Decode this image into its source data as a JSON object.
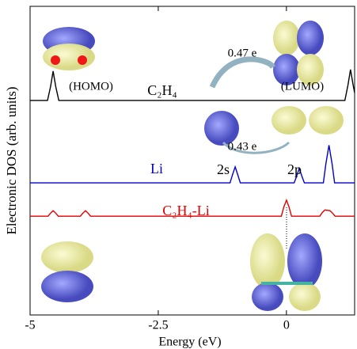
{
  "chart_data": {
    "type": "line",
    "xlabel": "Energy (eV)",
    "ylabel": "Electronic DOS (arb. units)",
    "xlim": [
      -5,
      1.33
    ],
    "xticks": [
      -5,
      -2.5,
      0
    ],
    "ylim": [
      0,
      10
    ],
    "series": [
      {
        "name": "C₂H₄",
        "color": "#000000",
        "x": [
          -5,
          -4.66,
          -4.6,
          -4.55,
          -4.5,
          -4.44,
          1.14,
          1.2,
          1.25,
          1.3,
          1.33
        ],
        "values": [
          6.95,
          6.95,
          7.4,
          7.9,
          7.4,
          6.95,
          6.95,
          7.45,
          7.95,
          7.45,
          7.2
        ]
      },
      {
        "name": "Li",
        "color": "#0000cc",
        "x": [
          -5,
          -1.1,
          -1.05,
          -1.0,
          -0.95,
          -0.9,
          0.15,
          0.2,
          0.25,
          0.3,
          0.35,
          0.72,
          0.77,
          0.83,
          0.89,
          0.94,
          1.33
        ],
        "values": [
          4.28,
          4.28,
          4.55,
          4.8,
          4.55,
          4.28,
          4.28,
          4.5,
          4.75,
          4.5,
          4.28,
          4.28,
          4.9,
          5.5,
          4.9,
          4.28,
          4.28
        ]
      },
      {
        "name": "C₂H₄-Li",
        "color": "#e00000",
        "x": [
          -5,
          -4.65,
          -4.6,
          -4.55,
          -4.5,
          -4.45,
          -4.02,
          -3.97,
          -3.92,
          -3.87,
          -3.82,
          -0.1,
          -0.05,
          0,
          0.05,
          0.1,
          0.65,
          0.7,
          0.75,
          0.85,
          0.9,
          0.95,
          1.33
        ],
        "values": [
          3.2,
          3.2,
          3.3,
          3.38,
          3.3,
          3.2,
          3.2,
          3.3,
          3.38,
          3.3,
          3.2,
          3.2,
          3.5,
          3.72,
          3.5,
          3.2,
          3.2,
          3.32,
          3.4,
          3.38,
          3.3,
          3.2,
          3.2
        ]
      }
    ],
    "annotations": [
      "(HOMO)",
      "(LUMO)",
      "0.47 e",
      "0.43 e",
      "2s",
      "2p"
    ]
  }
}
